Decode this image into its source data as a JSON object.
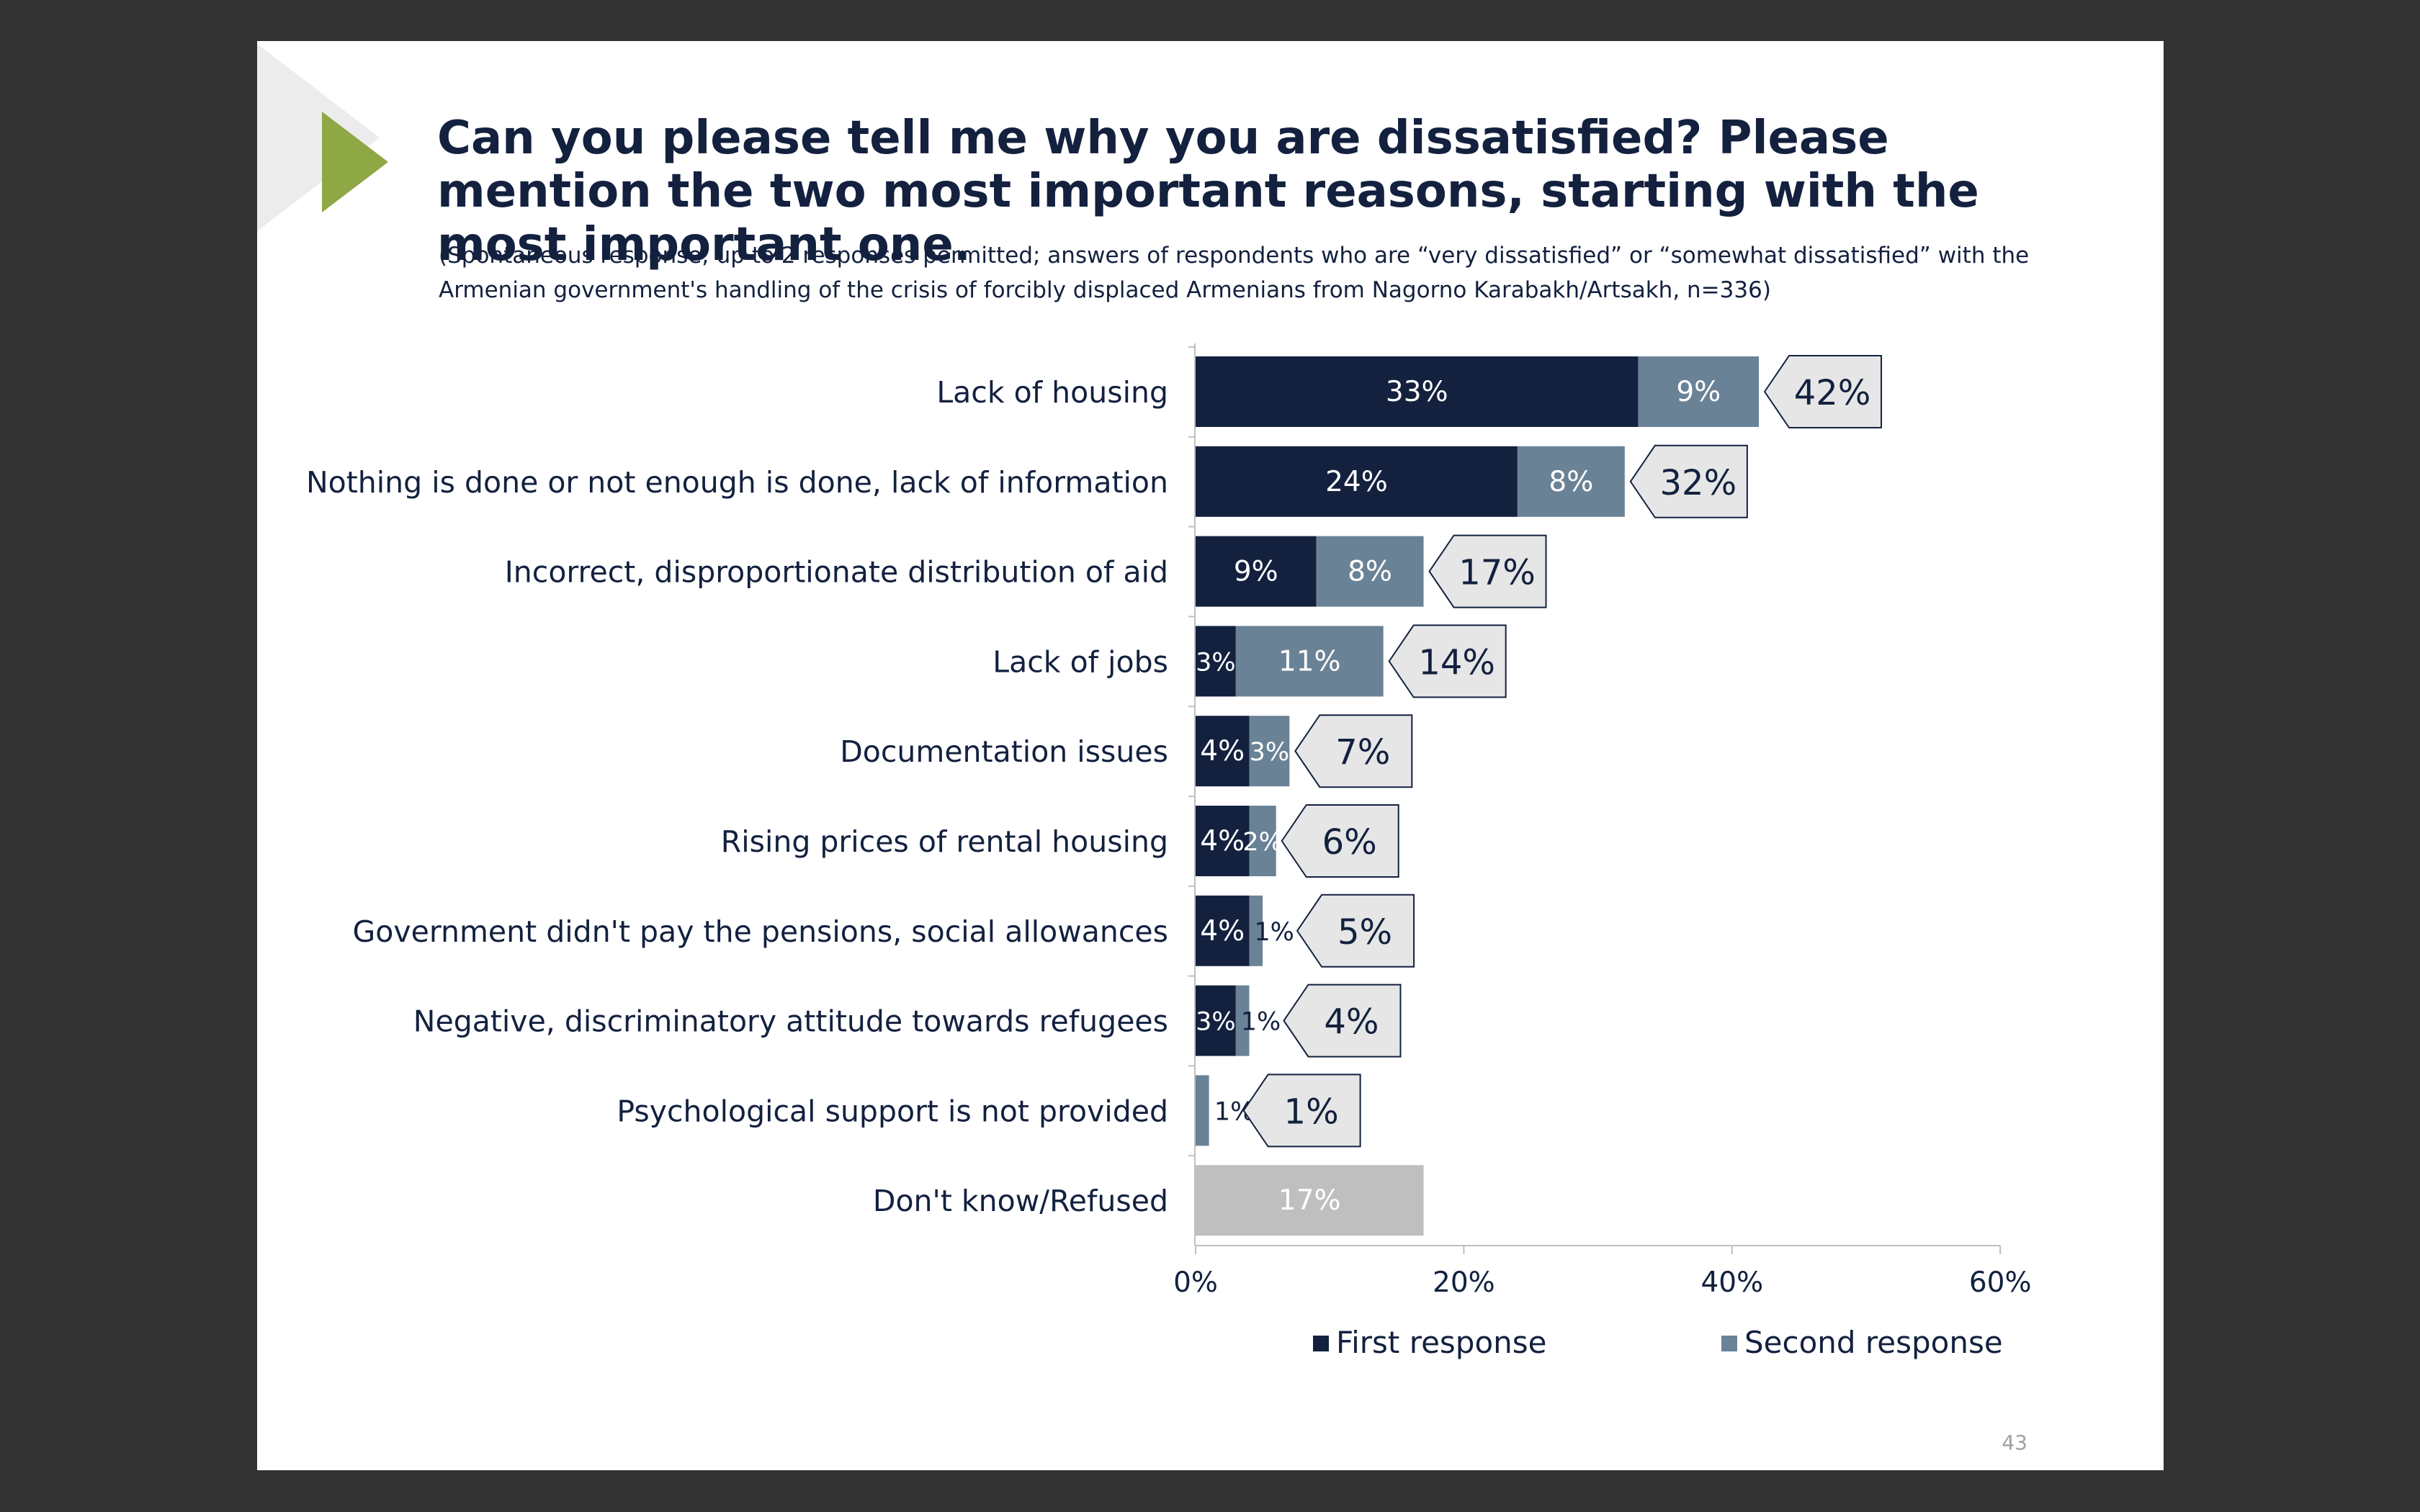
{
  "slide": {
    "title": "Can you please tell me why you are dissatisfied? Please mention the two most important reasons, starting with the most important one.",
    "subtitle": "(Spontaneous response; up to 2 responses permitted; answers of respondents who are “very dissatisfied” or “somewhat dissatisfied” with the Armenian government's handling of the crisis of forcibly displaced Armenians from Nagorno Karabakh/Artsakh, n=336)",
    "page_number": "43"
  },
  "chart_data": {
    "type": "bar",
    "orientation": "horizontal",
    "stacked": true,
    "categories": [
      "Lack of housing",
      "Nothing is done or not enough is done, lack of information",
      "Incorrect, disproportionate distribution of aid",
      "Lack of jobs",
      "Documentation issues",
      "Rising prices of rental housing",
      "Government didn't pay the pensions, social allowances",
      "Negative, discriminatory attitude towards refugees",
      "Psychological support is not provided",
      "Don't know/Refused"
    ],
    "series": [
      {
        "name": "First response",
        "color": "#13213f",
        "values": [
          33,
          24,
          9,
          3,
          4,
          4,
          4,
          3,
          null,
          null
        ],
        "labels": [
          "33%",
          "24%",
          "9%",
          "3%",
          "4%",
          "4%",
          "4%",
          "3%",
          "",
          ""
        ]
      },
      {
        "name": "Second response",
        "color": "#6a8296",
        "values": [
          9,
          8,
          8,
          11,
          3,
          2,
          1,
          1,
          1,
          null
        ],
        "labels": [
          "9%",
          "8%",
          "8%",
          "11%",
          "3%",
          "2%",
          "1%",
          "1%",
          "1%",
          ""
        ]
      }
    ],
    "dont_know": {
      "category_index": 9,
      "value": 17,
      "label": "17%",
      "color": "#bfbfbf"
    },
    "totals": [
      42,
      32,
      17,
      14,
      7,
      6,
      5,
      4,
      1,
      null
    ],
    "total_labels": [
      "42%",
      "32%",
      "17%",
      "14%",
      "7%",
      "6%",
      "5%",
      "4%",
      "1%",
      ""
    ],
    "x_axis": {
      "min": 0,
      "max": 60,
      "ticks": [
        0,
        20,
        40,
        60
      ],
      "tick_labels": [
        "0%",
        "20%",
        "40%",
        "60%"
      ]
    },
    "grid": false,
    "legend_position": "bottom"
  }
}
